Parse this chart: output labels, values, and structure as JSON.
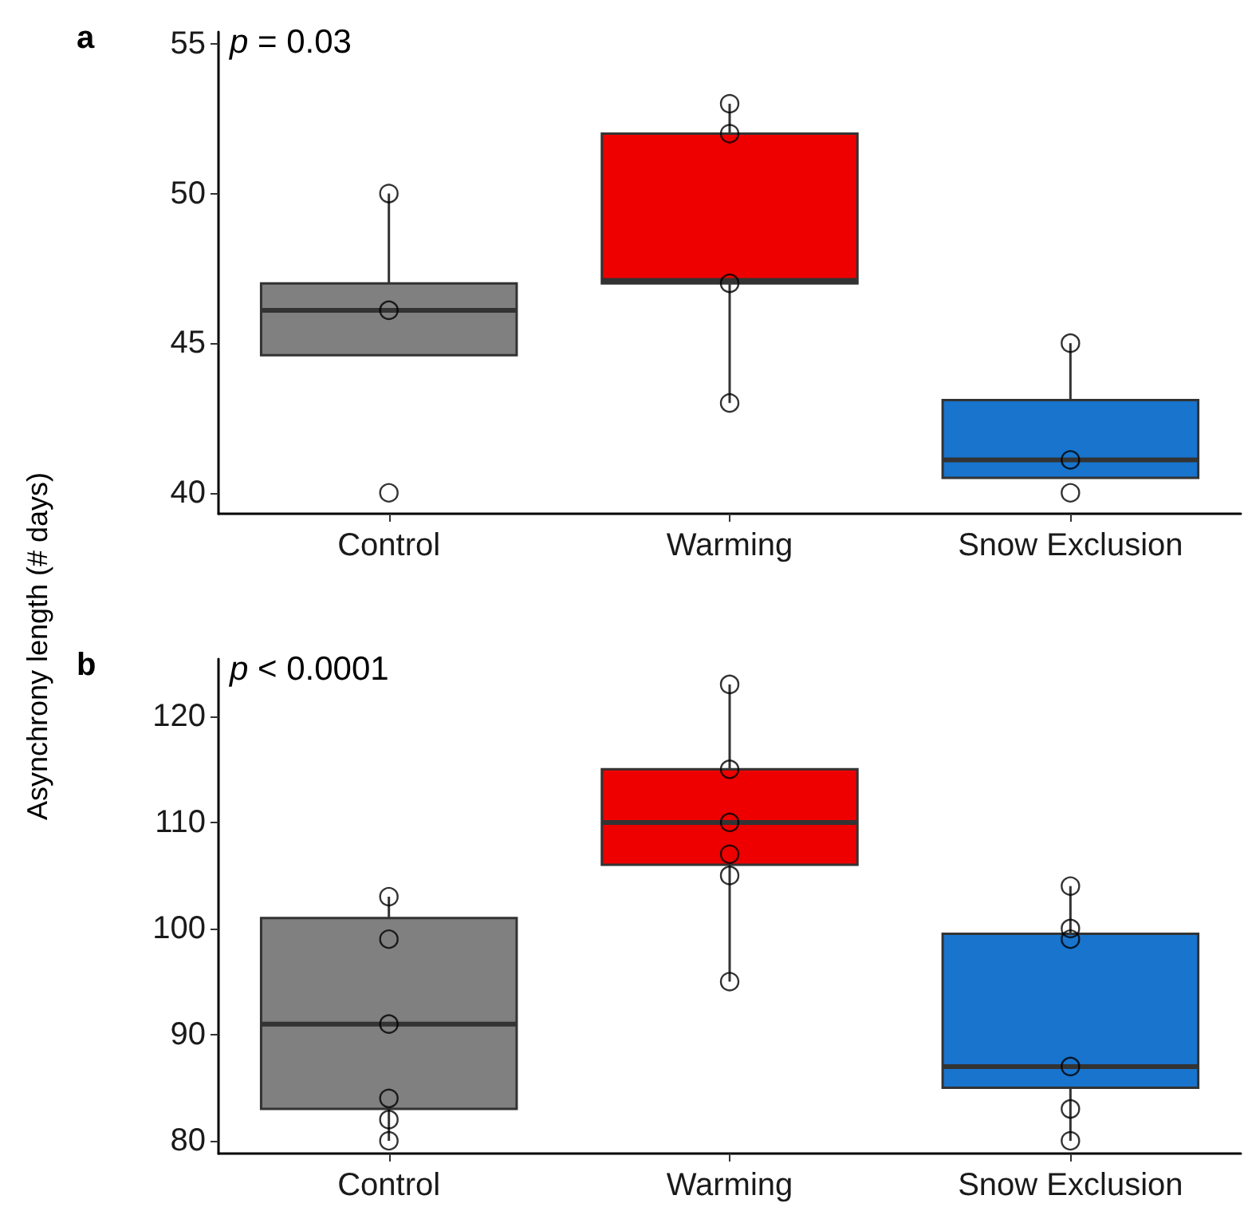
{
  "chart_data": [
    {
      "type": "box",
      "categories": [
        "Control",
        "Warming",
        "Snow Exclusion"
      ],
      "ylabel": "Asynchrony length (# days)",
      "annotations": [
        "a",
        "p = 0.03"
      ],
      "ylim": [
        39.3,
        55.4
      ],
      "yticks": [
        40,
        45,
        50,
        55
      ],
      "grid": false,
      "boxes": [
        {
          "low": 44.6,
          "q1": 44.6,
          "median": 46.1,
          "q3": 47,
          "high": 50
        },
        {
          "low": 43,
          "q1": 47,
          "median": 47.1,
          "q3": 52,
          "high": 53
        },
        {
          "low": 40.5,
          "q1": 40.5,
          "median": 41.1,
          "q3": 43.1,
          "high": 45
        }
      ],
      "colors": [
        "#808080",
        "#ee0000",
        "#1874cd"
      ],
      "series": [
        {
          "type": "scatter",
          "marker": "circle",
          "x": [
            "Control",
            "Control",
            "Control",
            "Warming",
            "Warming",
            "Warming",
            "Warming",
            "Snow Exclusion",
            "Snow Exclusion",
            "Snow Exclusion"
          ],
          "values": [
            40,
            46.1,
            50,
            43,
            47,
            52,
            53,
            40,
            41.1,
            45
          ]
        }
      ]
    },
    {
      "type": "box",
      "categories": [
        "Control",
        "Warming",
        "Snow Exclusion"
      ],
      "annotations": [
        "b",
        "p < 0.0001"
      ],
      "ylim": [
        78.8,
        125.4
      ],
      "yticks": [
        80,
        90,
        100,
        110,
        120
      ],
      "grid": false,
      "boxes": [
        {
          "low": 80,
          "q1": 83,
          "median": 91,
          "q3": 101,
          "high": 103
        },
        {
          "low": 95,
          "q1": 106,
          "median": 110,
          "q3": 115,
          "high": 123
        },
        {
          "low": 80,
          "q1": 85,
          "median": 87,
          "q3": 99.5,
          "high": 104
        }
      ],
      "colors": [
        "#808080",
        "#ee0000",
        "#1874cd"
      ],
      "series": [
        {
          "type": "scatter",
          "marker": "circle",
          "x": [
            "Control",
            "Control",
            "Control",
            "Control",
            "Control",
            "Control",
            "Warming",
            "Warming",
            "Warming",
            "Warming",
            "Warming",
            "Warming",
            "Snow Exclusion",
            "Snow Exclusion",
            "Snow Exclusion",
            "Snow Exclusion",
            "Snow Exclusion",
            "Snow Exclusion"
          ],
          "values": [
            80,
            82,
            84,
            91,
            99,
            103,
            95,
            105,
            107,
            110,
            115,
            123,
            80,
            83,
            87,
            99,
            100,
            104
          ]
        }
      ]
    }
  ]
}
